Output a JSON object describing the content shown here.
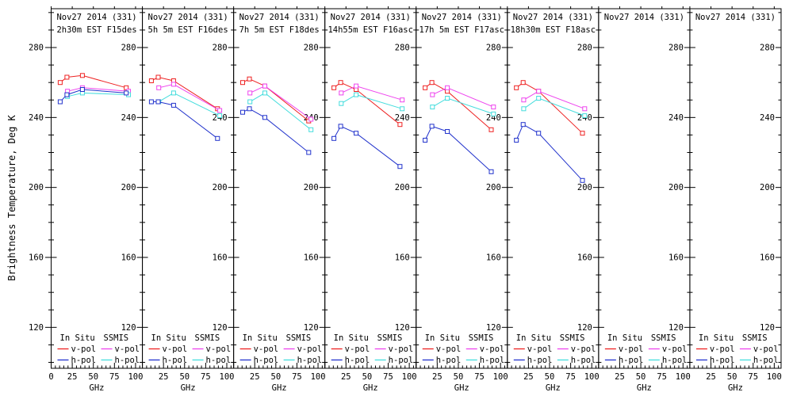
{
  "chart_data": {
    "type": "line",
    "title": "",
    "ylabel": "Brightness Temperature, Deg K",
    "xlabel": "GHz",
    "axis_color": "#000000",
    "background": "#ffffff",
    "grid": false,
    "x_ticks": [
      0,
      25,
      50,
      75,
      100
    ],
    "y_ticks": [
      120,
      160,
      200,
      240,
      280
    ],
    "x_minor_step": 5,
    "y_minor_step": 10,
    "xlim": [
      0,
      108
    ],
    "ylim": [
      97,
      302
    ],
    "insitu_x": [
      10.7,
      18.7,
      37,
      89
    ],
    "ssmis_x": [
      19.35,
      37,
      91.655
    ],
    "series_defs": [
      {
        "key": "insitu_v",
        "group": "In Situ",
        "pol": "v-pol",
        "x_key": "insitu_x",
        "color": "#ee2222"
      },
      {
        "key": "insitu_h",
        "group": "In Situ",
        "pol": "h-pol",
        "x_key": "insitu_x",
        "color": "#2233cc"
      },
      {
        "key": "ssmis_v",
        "group": "SSMIS",
        "pol": "v-pol",
        "x_key": "ssmis_x",
        "color": "#ee44ee"
      },
      {
        "key": "ssmis_h",
        "group": "SSMIS",
        "pol": "h-pol",
        "x_key": "ssmis_x",
        "color": "#44dddd"
      }
    ],
    "draw_order": [
      "insitu_v",
      "ssmis_v",
      "ssmis_h",
      "insitu_h"
    ],
    "legend": {
      "col1_header": "In Situ",
      "col2_header": "SSMIS",
      "vpol_label": "v-pol",
      "hpol_label": "h-pol",
      "position": "bottom-inside"
    },
    "panels": [
      {
        "title_line1": "Nov27 2014 (331)",
        "title_line2": "2h30m EST F15des",
        "series": {
          "insitu_v": [
            260,
            263,
            264,
            257
          ],
          "insitu_h": [
            249,
            253,
            256,
            254
          ],
          "ssmis_v": [
            255,
            257,
            255
          ],
          "ssmis_h": [
            252,
            254,
            253
          ]
        }
      },
      {
        "title_line1": "Nov27 2014 (331)",
        "title_line2": "5h 5m EST F16des",
        "series": {
          "insitu_v": [
            261,
            263,
            261,
            245
          ],
          "insitu_h": [
            249,
            249,
            247,
            228
          ],
          "ssmis_v": [
            257,
            259,
            244
          ],
          "ssmis_h": [
            249,
            254,
            241
          ]
        }
      },
      {
        "title_line1": "Nov27 2014 (331)",
        "title_line2": "7h 5m EST F18des",
        "series": {
          "insitu_v": [
            260,
            262,
            258,
            238
          ],
          "insitu_h": [
            243,
            245,
            240,
            220
          ],
          "ssmis_v": [
            254,
            258,
            239
          ],
          "ssmis_h": [
            249,
            254,
            233
          ]
        }
      },
      {
        "title_line1": "Nov27 2014 (331)",
        "title_line2": "14h55m EST F16asc",
        "series": {
          "insitu_v": [
            257,
            260,
            256,
            236
          ],
          "insitu_h": [
            228,
            235,
            231,
            212
          ],
          "ssmis_v": [
            254,
            258,
            250
          ],
          "ssmis_h": [
            248,
            253,
            245
          ]
        }
      },
      {
        "title_line1": "Nov27 2014 (331)",
        "title_line2": "17h 5m EST F17asc",
        "series": {
          "insitu_v": [
            257,
            260,
            255,
            233
          ],
          "insitu_h": [
            227,
            235,
            232,
            209
          ],
          "ssmis_v": [
            253,
            257,
            246
          ],
          "ssmis_h": [
            246,
            251,
            242
          ]
        }
      },
      {
        "title_line1": "Nov27 2014 (331)",
        "title_line2": "18h30m EST F18asc",
        "series": {
          "insitu_v": [
            257,
            260,
            255,
            231
          ],
          "insitu_h": [
            227,
            236,
            231,
            204
          ],
          "ssmis_v": [
            250,
            255,
            245
          ],
          "ssmis_h": [
            245,
            251,
            241
          ]
        }
      },
      {
        "title_line1": "Nov27 2014 (331)",
        "title_line2": "",
        "series": null
      },
      {
        "title_line1": "Nov27 2014 (331)",
        "title_line2": "",
        "series": null
      }
    ]
  }
}
